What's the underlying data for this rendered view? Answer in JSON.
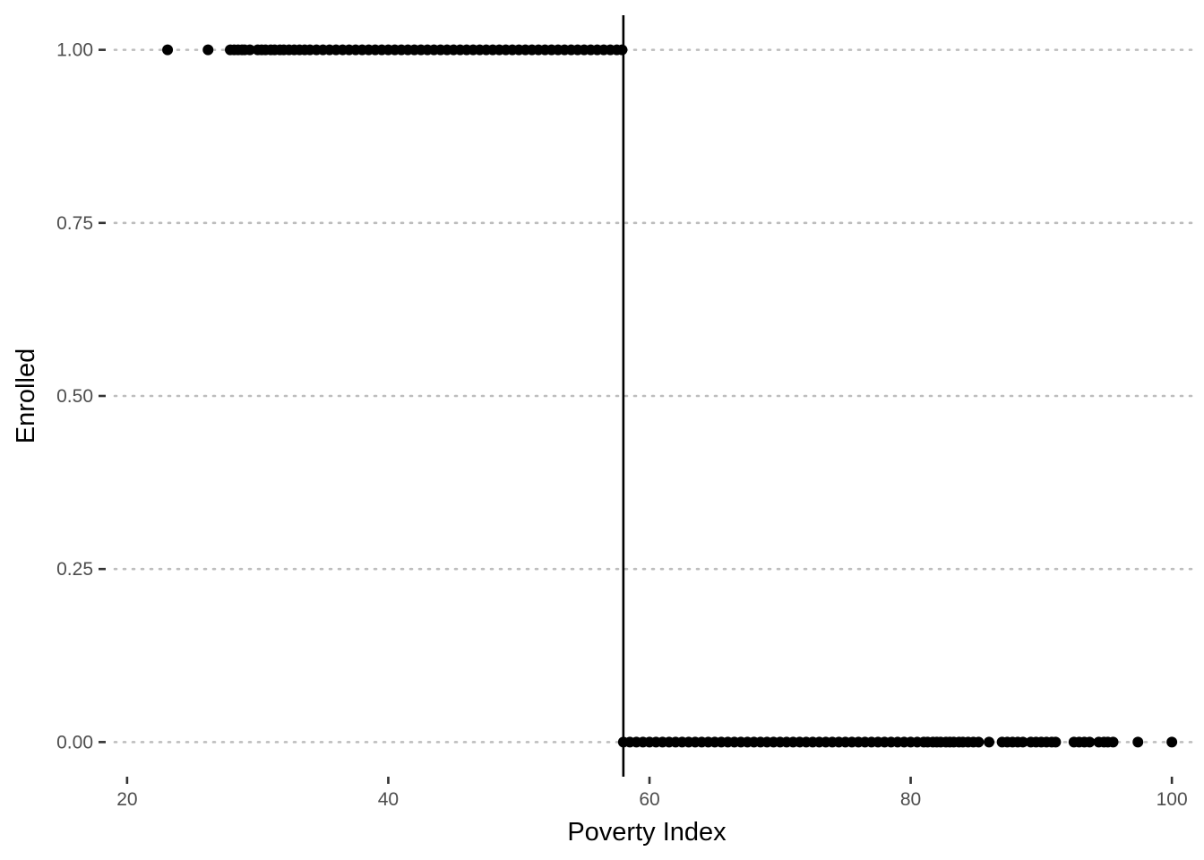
{
  "chart_data": {
    "type": "scatter",
    "title": "",
    "xlabel": "Poverty Index",
    "ylabel": "Enrolled",
    "xlim": [
      18.5,
      101.5
    ],
    "ylim": [
      -0.05,
      1.05
    ],
    "x_ticks": [
      20,
      40,
      60,
      80,
      100
    ],
    "x_tick_labels": [
      "20",
      "40",
      "60",
      "80",
      "100"
    ],
    "y_ticks": [
      0,
      0.25,
      0.5,
      0.75,
      1
    ],
    "y_tick_labels": [
      "0.00",
      "0.25",
      "0.50",
      "0.75",
      "1.00"
    ],
    "grid": "horizontal dotted",
    "legend": "none",
    "point_color": "#000000",
    "cutoff_line": {
      "x": 58,
      "color": "#000000"
    },
    "series": [
      {
        "y": 1,
        "x": [
          23.1,
          26.2,
          27.9,
          28.2,
          28.5,
          28.8,
          29.0,
          29.4,
          30.0,
          30.3,
          30.6,
          31.0,
          31.3,
          31.7,
          32.0,
          32.4,
          32.8,
          33.2,
          33.6,
          34.0,
          34.5,
          35.0,
          35.5,
          36.0,
          36.5,
          37.0,
          37.5,
          38.0,
          38.5,
          39.0,
          39.5,
          40.0,
          40.5,
          41.0,
          41.5,
          42.0,
          42.5,
          43.0,
          43.5,
          44.0,
          44.5,
          45.0,
          45.5,
          46.0,
          46.5,
          47.0,
          47.5,
          48.0,
          48.5,
          49.0,
          49.5,
          50.0,
          50.5,
          51.0,
          51.5,
          52.0,
          52.5,
          53.0,
          53.5,
          54.0,
          54.5,
          55.0,
          55.5,
          56.0,
          56.5,
          57.0,
          57.5,
          57.9
        ]
      },
      {
        "y": 0,
        "x": [
          58.0,
          58.5,
          59.0,
          59.5,
          60.0,
          60.5,
          61.0,
          61.5,
          62.0,
          62.5,
          63.0,
          63.5,
          64.0,
          64.5,
          65.0,
          65.5,
          66.0,
          66.5,
          67.0,
          67.5,
          68.0,
          68.5,
          69.0,
          69.5,
          70.0,
          70.5,
          71.0,
          71.5,
          72.0,
          72.5,
          73.0,
          73.5,
          74.0,
          74.5,
          75.0,
          75.5,
          76.0,
          76.5,
          77.0,
          77.5,
          78.0,
          78.5,
          79.0,
          79.5,
          80.0,
          80.5,
          81.0,
          81.3,
          81.7,
          82.0,
          82.3,
          82.7,
          83.0,
          83.3,
          83.7,
          84.0,
          84.4,
          84.8,
          85.2,
          86.0,
          87.0,
          87.4,
          87.8,
          88.2,
          88.6,
          89.2,
          89.6,
          90.0,
          90.4,
          90.8,
          91.1,
          92.5,
          92.9,
          93.3,
          93.7,
          94.4,
          94.8,
          95.1,
          95.5,
          97.4,
          100.0
        ]
      }
    ]
  }
}
